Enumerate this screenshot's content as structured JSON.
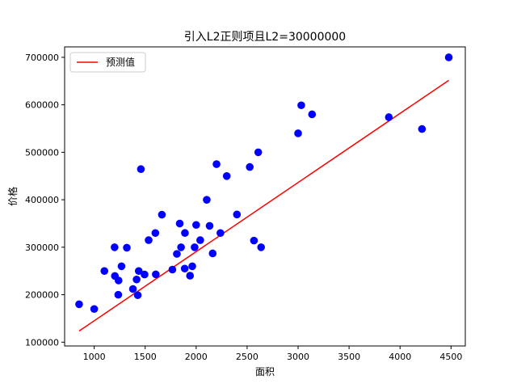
{
  "chart_data": {
    "type": "scatter",
    "title": "引入L2正则项且L2=30000000",
    "xlabel": "面积",
    "ylabel": "价格",
    "xlim": [
      710,
      4640
    ],
    "ylim": [
      92000,
      722000
    ],
    "xticks": [
      1000,
      1500,
      2000,
      2500,
      3000,
      3500,
      4000,
      4500
    ],
    "yticks": [
      100000,
      200000,
      300000,
      400000,
      500000,
      600000,
      700000
    ],
    "grid": false,
    "legend_position": "top-left",
    "colors": {
      "points": "#0000ff",
      "line": "#ff0000"
    },
    "series": [
      {
        "type": "scatter",
        "points": [
          [
            852,
            179900
          ],
          [
            1000,
            169900
          ],
          [
            1100,
            249900
          ],
          [
            1200,
            299900
          ],
          [
            1203,
            239500
          ],
          [
            1236,
            199900
          ],
          [
            1239,
            229900
          ],
          [
            1268,
            259900
          ],
          [
            1320,
            299000
          ],
          [
            1380,
            212000
          ],
          [
            1416,
            232000
          ],
          [
            1427,
            198999
          ],
          [
            1437,
            249900
          ],
          [
            1458,
            464500
          ],
          [
            1494,
            242500
          ],
          [
            1534,
            314900
          ],
          [
            1600,
            329900
          ],
          [
            1604,
            242900
          ],
          [
            1664,
            368500
          ],
          [
            1767,
            252900
          ],
          [
            1811,
            285900
          ],
          [
            1839,
            349900
          ],
          [
            1852,
            299900
          ],
          [
            1888,
            255000
          ],
          [
            1890,
            329999
          ],
          [
            1940,
            239999
          ],
          [
            1962,
            259900
          ],
          [
            1985,
            299900
          ],
          [
            2000,
            347000
          ],
          [
            2040,
            314900
          ],
          [
            2104,
            399900
          ],
          [
            2132,
            345000
          ],
          [
            2162,
            287000
          ],
          [
            2200,
            475000
          ],
          [
            2238,
            329900
          ],
          [
            2300,
            449900
          ],
          [
            2400,
            369000
          ],
          [
            2526,
            469000
          ],
          [
            2567,
            314000
          ],
          [
            2609,
            499998
          ],
          [
            2637,
            299900
          ],
          [
            3000,
            539900
          ],
          [
            3031,
            599000
          ],
          [
            3137,
            579900
          ],
          [
            3890,
            573900
          ],
          [
            4215,
            549000
          ],
          [
            4478,
            699900
          ]
        ]
      },
      {
        "type": "line",
        "name": "预测值",
        "x": [
          852,
          4478
        ],
        "y": [
          123500,
          651500
        ]
      }
    ]
  }
}
